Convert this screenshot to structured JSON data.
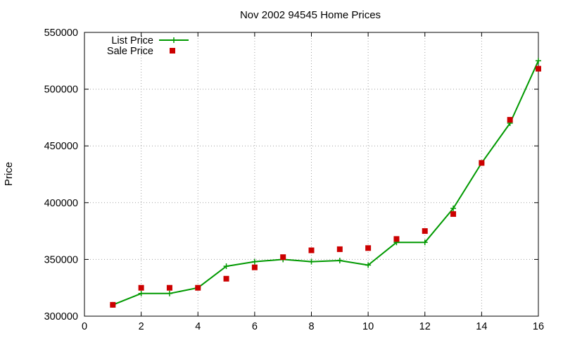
{
  "chart_data": {
    "type": "line",
    "title": "Nov 2002 94545 Home Prices",
    "xlabel": "",
    "ylabel": "Price",
    "xlim": [
      0,
      16
    ],
    "ylim": [
      300000,
      550000
    ],
    "x_ticks": [
      0,
      2,
      4,
      6,
      8,
      10,
      12,
      14,
      16
    ],
    "y_ticks": [
      300000,
      350000,
      400000,
      450000,
      500000,
      550000
    ],
    "grid": true,
    "legend_position": "top-left",
    "series": [
      {
        "name": "List Price",
        "style": "line-with-plus-markers",
        "color": "#009900",
        "x": [
          1,
          2,
          3,
          4,
          5,
          6,
          7,
          8,
          9,
          10,
          11,
          12,
          13,
          14,
          15,
          16
        ],
        "y": [
          310000,
          320000,
          320000,
          325000,
          344000,
          348000,
          350000,
          348000,
          349000,
          345000,
          365000,
          365000,
          395000,
          435000,
          470000,
          525000
        ]
      },
      {
        "name": "Sale Price",
        "style": "square-markers",
        "color": "#cc0000",
        "x": [
          1,
          2,
          3,
          4,
          5,
          6,
          7,
          8,
          9,
          10,
          11,
          12,
          13,
          14,
          15,
          16
        ],
        "y": [
          310000,
          325000,
          325000,
          325000,
          333000,
          343000,
          352000,
          358000,
          359000,
          360000,
          368000,
          375000,
          390000,
          435000,
          473000,
          518000
        ]
      }
    ]
  }
}
